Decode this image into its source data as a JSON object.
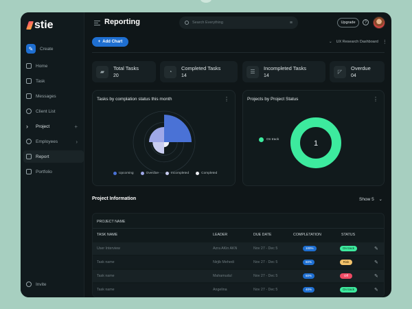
{
  "brand": {
    "name": "stie"
  },
  "sidebar": {
    "create": "Create",
    "items": [
      {
        "label": "Home",
        "icon": "home-icon"
      },
      {
        "label": "Task",
        "icon": "task-icon"
      },
      {
        "label": "Messages",
        "icon": "message-icon"
      },
      {
        "label": "Client List",
        "icon": "user-icon"
      },
      {
        "label": "Project",
        "icon": "chevron-right-icon",
        "trail": "+"
      },
      {
        "label": "Employees",
        "icon": "users-icon",
        "trail": "›"
      },
      {
        "label": "Report",
        "icon": "report-icon"
      },
      {
        "label": "Portfolio",
        "icon": "folder-icon"
      }
    ],
    "invite": "Invite"
  },
  "header": {
    "title": "Reporting",
    "search_placeholder": "Search Everything",
    "upgrade": "Upgrade",
    "help": "?"
  },
  "toolbar": {
    "add_chart": "Add Chart",
    "dashboard": "UX Research Dashboard"
  },
  "stats": [
    {
      "label": "Total Tasks",
      "value": "20"
    },
    {
      "label": "Completed Tasks",
      "value": "14"
    },
    {
      "label": "Incompleted Tasks",
      "value": "14"
    },
    {
      "label": "Overdue",
      "value": "04"
    }
  ],
  "polar_card": {
    "title": "Tasks by complation status this month",
    "legend": [
      "Upcoming",
      "Overdue",
      "Incompleted",
      "Completed"
    ]
  },
  "donut_card": {
    "title": "Projects by Project Status",
    "legend": "On track",
    "center": "1"
  },
  "colors": {
    "upcoming": "#4a72d6",
    "overdue": "#9fa8e8",
    "incompleted": "#c9cdf0",
    "completed": "#eef0f5",
    "on_track": "#3dea9e",
    "accent": "#1f6fd1"
  },
  "chart_data": [
    {
      "type": "pie",
      "title": "Tasks by complation status this month",
      "categories": [
        "Upcoming",
        "Overdue",
        "Incompleted",
        "Completed"
      ],
      "values": [
        1.0,
        0.55,
        0.42,
        0.18
      ]
    },
    {
      "type": "pie",
      "title": "Projects by Project Status",
      "categories": [
        "On track"
      ],
      "values": [
        1
      ]
    }
  ],
  "project_info": {
    "title": "Project Information",
    "show": "Show 5",
    "table_title": "PROJECT NAME",
    "columns": [
      "TASK NAME",
      "LEADER",
      "DUE DATE",
      "COMPLETATION",
      "STATUS"
    ],
    "rows": [
      {
        "task": "User Interview",
        "leader": "Azra AKin AKN",
        "due": "Nov 27 - Dec 5",
        "completion": "100%",
        "status": "On track",
        "comp_color": "#1f6fd1",
        "status_color": "#3dea9e",
        "status_text_color": "#0f2a1c"
      },
      {
        "task": "Task name",
        "leader": "Nirjib Mehedi",
        "due": "Nov 27 - Dec 5",
        "completion": "60%",
        "status": "Risk",
        "comp_color": "#1f6fd1",
        "status_color": "#f2c26b",
        "status_text_color": "#3a2a08"
      },
      {
        "task": "Task name",
        "leader": "Mahamudul",
        "due": "Nov 27 - Dec 5",
        "completion": "50%",
        "status": "Off",
        "comp_color": "#1f6fd1",
        "status_color": "#ef4a63",
        "status_text_color": "#ffffff"
      },
      {
        "task": "Task name",
        "leader": "Angelina",
        "due": "Nov 27 - Dec 5",
        "completion": "40%",
        "status": "On track",
        "comp_color": "#1f6fd1",
        "status_color": "#3dea9e",
        "status_text_color": "#0f2a1c"
      }
    ]
  }
}
